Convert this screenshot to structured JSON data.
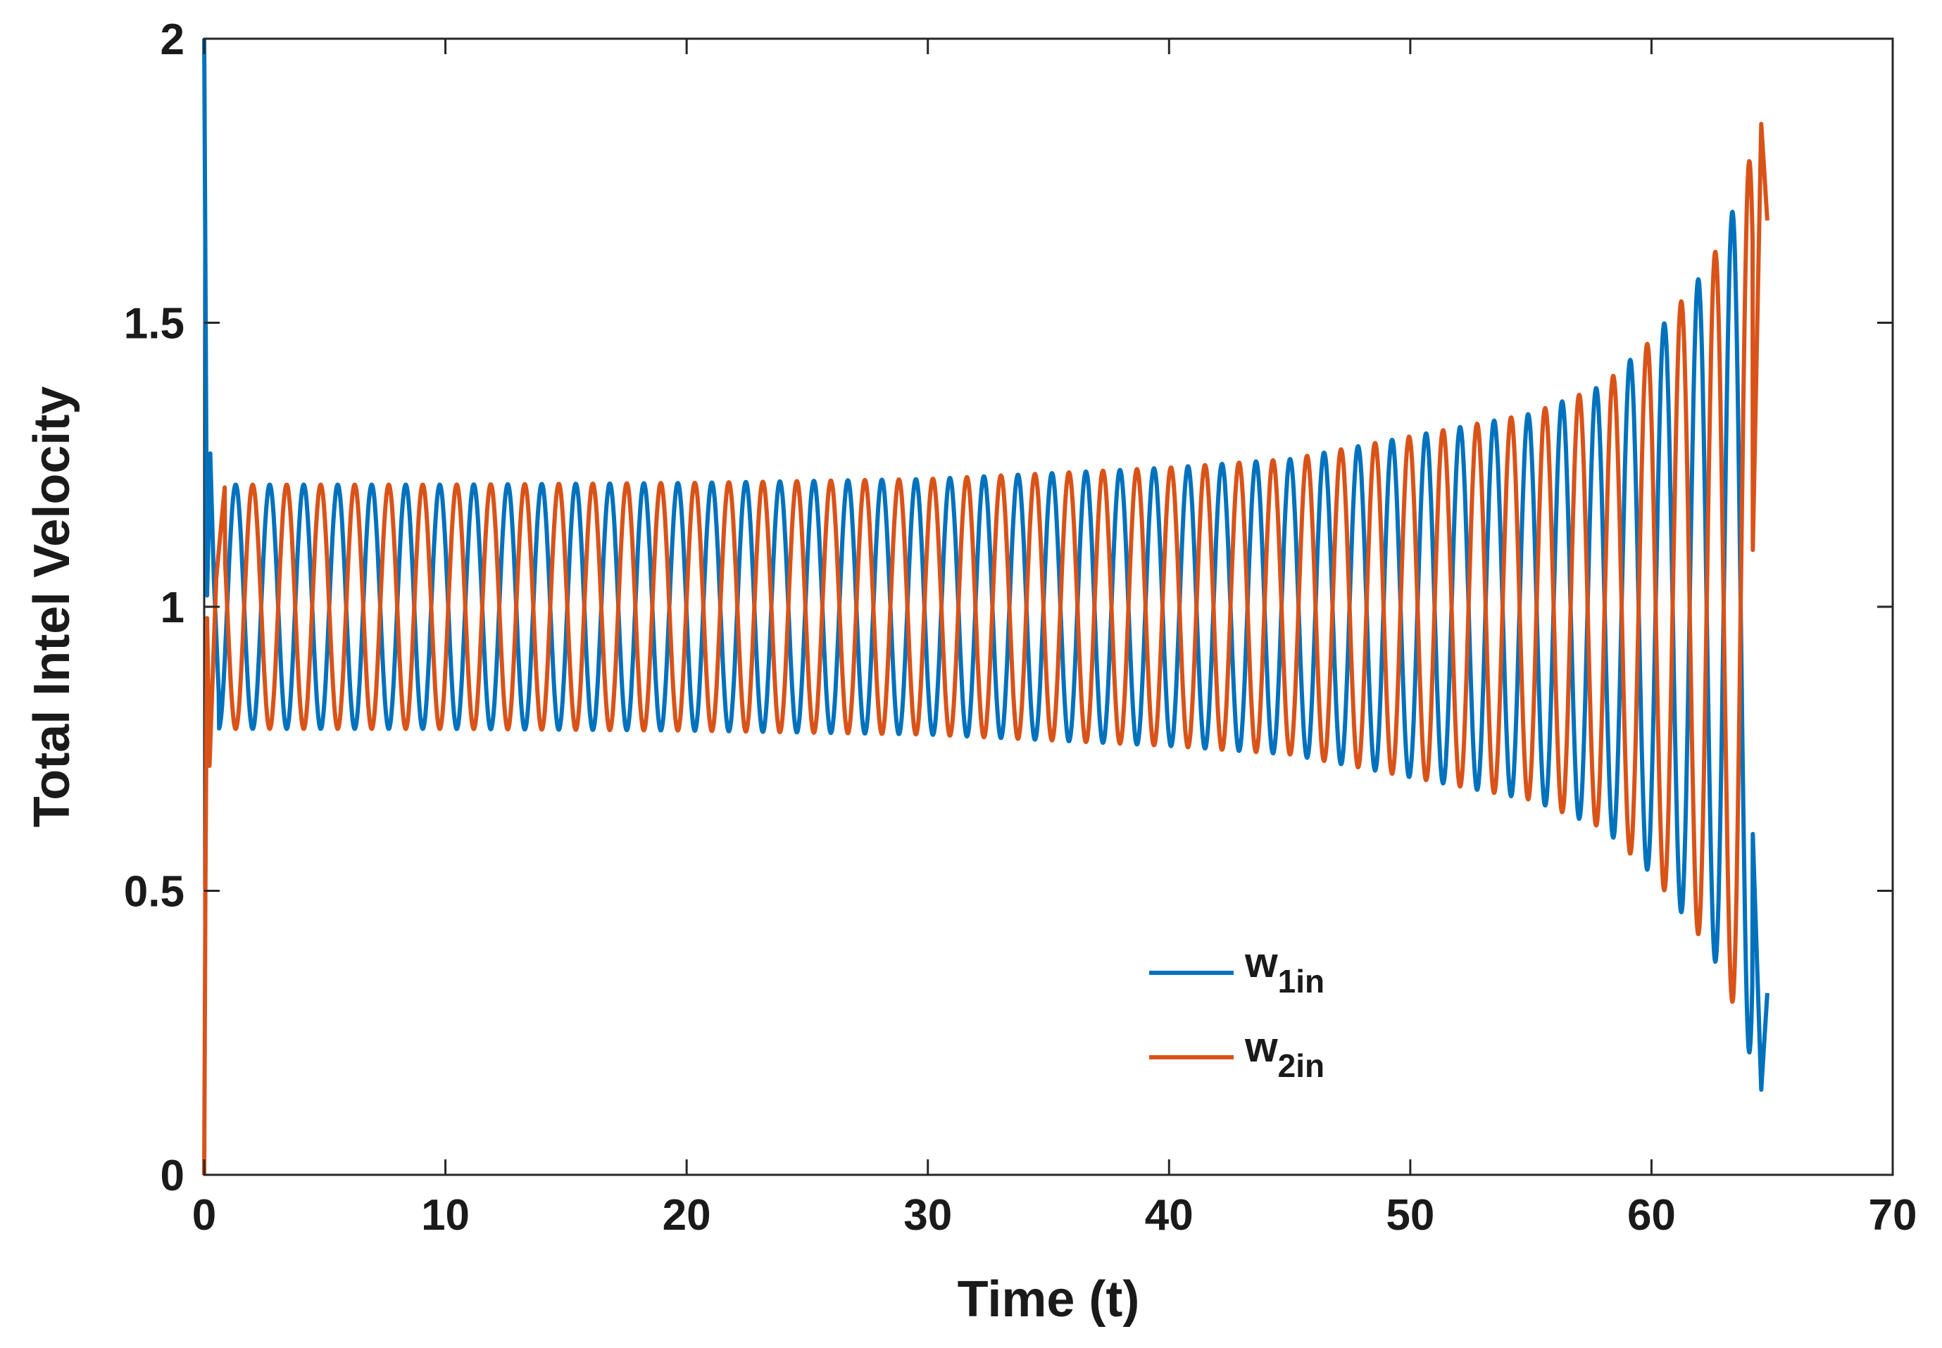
{
  "chart_data": {
    "type": "line",
    "title": "",
    "xlabel": "Time (t)",
    "ylabel": "Total Intel Velocity",
    "xlim": [
      0,
      70
    ],
    "ylim": [
      0,
      2
    ],
    "xticks": [
      0,
      10,
      20,
      30,
      40,
      50,
      60,
      70
    ],
    "yticks": [
      0,
      0.5,
      1,
      1.5,
      2
    ],
    "xtick_labels": [
      "0",
      "10",
      "20",
      "30",
      "40",
      "50",
      "60",
      "70"
    ],
    "ytick_labels": [
      "0",
      "0.5",
      "1",
      "1.5",
      "2"
    ],
    "grid": false,
    "legend_position": "lower-right-center",
    "oscillation": {
      "period": 1.41,
      "mean": 1.0,
      "t_end": 64.8,
      "amplitude_points": [
        {
          "t": 0.5,
          "amp": 0.215
        },
        {
          "t": 10,
          "amp": 0.215
        },
        {
          "t": 20,
          "amp": 0.218
        },
        {
          "t": 30,
          "amp": 0.225
        },
        {
          "t": 40,
          "amp": 0.245
        },
        {
          "t": 45,
          "amp": 0.26
        },
        {
          "t": 50,
          "amp": 0.3
        },
        {
          "t": 55,
          "amp": 0.34
        },
        {
          "t": 58,
          "amp": 0.39
        },
        {
          "t": 60,
          "amp": 0.47
        },
        {
          "t": 62,
          "amp": 0.58
        },
        {
          "t": 63,
          "amp": 0.65
        },
        {
          "t": 64,
          "amp": 0.78
        },
        {
          "t": 64.8,
          "amp": 0.85
        }
      ]
    },
    "series": [
      {
        "name": "w1in",
        "legend_main": "w",
        "legend_sub": "1in",
        "color": "#0072BD",
        "phase": 0,
        "initial_points": [
          {
            "t": 0.0,
            "v": 2.0
          },
          {
            "t": 0.05,
            "v": 1.6
          },
          {
            "t": 0.12,
            "v": 1.02
          },
          {
            "t": 0.25,
            "v": 1.27
          },
          {
            "t": 0.4,
            "v": 1.05
          },
          {
            "t": 0.6,
            "v": 0.85
          }
        ],
        "final_points": [
          {
            "t": 64.2,
            "v": 0.6
          },
          {
            "t": 64.55,
            "v": 0.15
          },
          {
            "t": 64.8,
            "v": 0.32
          }
        ]
      },
      {
        "name": "w2in",
        "legend_main": "w",
        "legend_sub": "2in",
        "color": "#D95319",
        "phase": 0.5,
        "initial_points": [
          {
            "t": 0.0,
            "v": 0.0
          },
          {
            "t": 0.05,
            "v": 0.5
          },
          {
            "t": 0.12,
            "v": 0.98
          },
          {
            "t": 0.22,
            "v": 0.72
          },
          {
            "t": 0.5,
            "v": 1.05
          },
          {
            "t": 0.85,
            "v": 1.21
          }
        ],
        "final_points": [
          {
            "t": 64.2,
            "v": 1.1
          },
          {
            "t": 64.55,
            "v": 1.85
          },
          {
            "t": 64.8,
            "v": 1.68
          }
        ]
      }
    ]
  }
}
